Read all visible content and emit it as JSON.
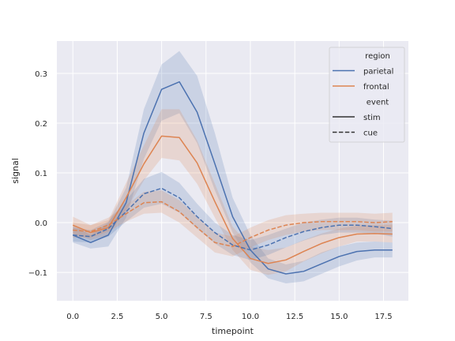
{
  "chart_data": {
    "type": "line",
    "xlabel": "timepoint",
    "ylabel": "signal",
    "xlim": [
      -0.9,
      18.9
    ],
    "ylim": [
      -0.157,
      0.365
    ],
    "xticks": [
      0.0,
      2.5,
      5.0,
      7.5,
      10.0,
      12.5,
      15.0,
      17.5
    ],
    "xtick_labels": [
      "0.0",
      "2.5",
      "5.0",
      "7.5",
      "10.0",
      "12.5",
      "15.0",
      "17.5"
    ],
    "yticks": [
      -0.1,
      0.0,
      0.1,
      0.2,
      0.3
    ],
    "ytick_labels": [
      "−0.1",
      "0.0",
      "0.1",
      "0.2",
      "0.3"
    ],
    "grid": true,
    "legend_position": "top-right",
    "legend": [
      {
        "label": "region",
        "kind": "header"
      },
      {
        "label": "parietal",
        "kind": "color",
        "color": "#4c72b0"
      },
      {
        "label": "frontal",
        "kind": "color",
        "color": "#dd8452"
      },
      {
        "label": "event",
        "kind": "header"
      },
      {
        "label": "stim",
        "kind": "style",
        "dash": "solid"
      },
      {
        "label": "cue",
        "kind": "style",
        "dash": "dashed"
      }
    ],
    "x": [
      0,
      1,
      2,
      3,
      4,
      5,
      6,
      7,
      8,
      9,
      10,
      11,
      12,
      13,
      14,
      15,
      16,
      17,
      18
    ],
    "series": [
      {
        "name": "parietal",
        "event": "stim",
        "color": "#4c72b0",
        "dash": "solid",
        "values": [
          -0.025,
          -0.04,
          -0.025,
          0.04,
          0.18,
          0.268,
          0.283,
          0.222,
          0.118,
          0.012,
          -0.055,
          -0.093,
          -0.103,
          -0.098,
          -0.083,
          -0.068,
          -0.058,
          -0.055,
          -0.055
        ],
        "ci_low": [
          -0.04,
          -0.052,
          -0.048,
          0.01,
          0.128,
          0.205,
          0.22,
          0.16,
          0.065,
          -0.02,
          -0.08,
          -0.112,
          -0.122,
          -0.118,
          -0.103,
          -0.088,
          -0.076,
          -0.07,
          -0.07
        ],
        "ci_high": [
          -0.005,
          -0.025,
          0.0,
          0.07,
          0.228,
          0.318,
          0.345,
          0.295,
          0.18,
          0.05,
          -0.025,
          -0.072,
          -0.084,
          -0.077,
          -0.06,
          -0.048,
          -0.04,
          -0.038,
          -0.04
        ]
      },
      {
        "name": "frontal",
        "event": "stim",
        "color": "#dd8452",
        "dash": "solid",
        "values": [
          -0.005,
          -0.02,
          -0.01,
          0.05,
          0.118,
          0.174,
          0.171,
          0.12,
          0.042,
          -0.032,
          -0.072,
          -0.082,
          -0.075,
          -0.058,
          -0.042,
          -0.03,
          -0.023,
          -0.022,
          -0.023
        ],
        "ci_low": [
          -0.022,
          -0.035,
          -0.025,
          0.025,
          0.085,
          0.13,
          0.125,
          0.078,
          0.01,
          -0.055,
          -0.095,
          -0.105,
          -0.098,
          -0.078,
          -0.062,
          -0.048,
          -0.038,
          -0.038,
          -0.04
        ],
        "ci_high": [
          0.012,
          -0.005,
          0.005,
          0.08,
          0.155,
          0.228,
          0.228,
          0.165,
          0.078,
          -0.008,
          -0.048,
          -0.055,
          -0.05,
          -0.035,
          -0.022,
          -0.012,
          -0.006,
          -0.005,
          -0.004
        ]
      },
      {
        "name": "parietal",
        "event": "cue",
        "color": "#4c72b0",
        "dash": "dashed",
        "values": [
          -0.025,
          -0.028,
          -0.012,
          0.022,
          0.058,
          0.069,
          0.05,
          0.012,
          -0.02,
          -0.045,
          -0.055,
          -0.045,
          -0.03,
          -0.018,
          -0.01,
          -0.005,
          -0.005,
          -0.008,
          -0.012
        ],
        "ci_low": [
          -0.038,
          -0.04,
          -0.028,
          0.002,
          0.03,
          0.038,
          0.02,
          -0.012,
          -0.042,
          -0.065,
          -0.075,
          -0.065,
          -0.05,
          -0.036,
          -0.025,
          -0.02,
          -0.02,
          -0.022,
          -0.028
        ],
        "ci_high": [
          -0.01,
          -0.015,
          0.002,
          0.045,
          0.088,
          0.102,
          0.08,
          0.038,
          0.0,
          -0.025,
          -0.035,
          -0.025,
          -0.012,
          0.0,
          0.006,
          0.01,
          0.01,
          0.006,
          0.004
        ]
      },
      {
        "name": "frontal",
        "event": "cue",
        "color": "#dd8452",
        "dash": "dashed",
        "values": [
          -0.015,
          -0.018,
          -0.005,
          0.018,
          0.04,
          0.042,
          0.022,
          -0.01,
          -0.04,
          -0.048,
          -0.03,
          -0.015,
          -0.005,
          0.0,
          0.002,
          0.002,
          0.002,
          0.0,
          0.002
        ],
        "ci_low": [
          -0.03,
          -0.03,
          -0.018,
          0.002,
          0.018,
          0.02,
          0.0,
          -0.03,
          -0.06,
          -0.068,
          -0.05,
          -0.035,
          -0.025,
          -0.018,
          -0.015,
          -0.015,
          -0.015,
          -0.018,
          -0.018
        ],
        "ci_high": [
          0.0,
          -0.005,
          0.01,
          0.035,
          0.062,
          0.065,
          0.045,
          0.012,
          -0.02,
          -0.028,
          -0.01,
          0.005,
          0.015,
          0.018,
          0.02,
          0.02,
          0.02,
          0.018,
          0.02
        ]
      }
    ]
  }
}
